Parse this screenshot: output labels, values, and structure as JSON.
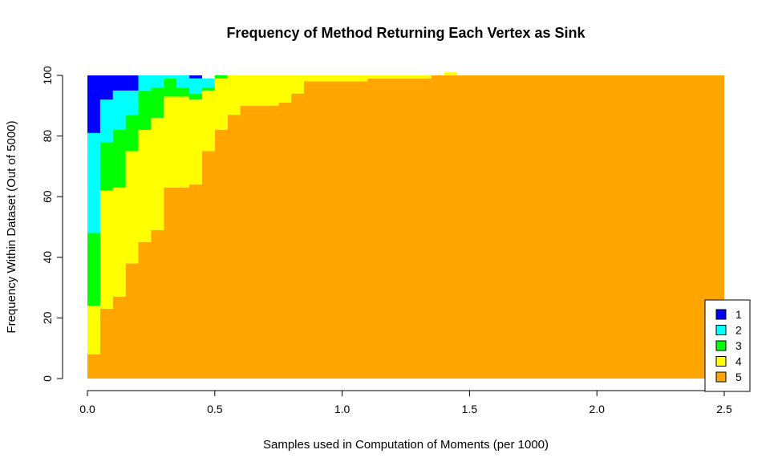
{
  "chart_data": {
    "type": "area",
    "title": "Frequency of Method Returning Each Vertex as Sink",
    "xlabel": "Samples used in Computation of Moments (per 1000)",
    "ylabel": "Frequency Within Dataset (Out of 5000)",
    "xlim": [
      0,
      2.5
    ],
    "ylim": [
      0,
      100
    ],
    "xticks": [
      "0.0",
      "0.5",
      "1.0",
      "1.5",
      "2.0",
      "2.5"
    ],
    "yticks": [
      "0",
      "20",
      "40",
      "60",
      "80",
      "100"
    ],
    "legend_position": "bottom-right",
    "x": [
      0.0,
      0.05,
      0.1,
      0.15,
      0.2,
      0.25,
      0.3,
      0.35,
      0.4,
      0.45,
      0.5,
      0.55,
      0.6,
      0.65,
      0.7,
      0.75,
      0.8,
      0.85,
      0.9,
      0.95,
      1.0,
      1.05,
      1.1,
      1.15,
      1.2,
      1.25,
      1.3,
      1.35,
      1.4,
      1.45,
      1.5,
      1.55,
      1.6,
      1.65,
      1.7,
      1.75,
      1.8,
      1.85,
      1.9,
      1.95,
      2.0,
      2.05,
      2.1,
      2.15,
      2.2,
      2.25,
      2.3,
      2.35,
      2.4,
      2.45
    ],
    "series": [
      {
        "name": "5",
        "color": "#FFA500",
        "values": [
          8,
          23,
          27,
          38,
          45,
          49,
          63,
          63,
          64,
          75,
          82,
          87,
          90,
          90,
          90,
          91,
          94,
          98,
          98,
          98,
          98,
          98,
          99,
          99,
          99,
          99,
          99,
          100,
          100,
          100,
          100,
          100,
          100,
          100,
          100,
          100,
          100,
          100,
          100,
          100,
          100,
          100,
          100,
          100,
          100,
          100,
          100,
          100,
          100,
          100
        ]
      },
      {
        "name": "4",
        "color": "#FFFF00",
        "values": [
          16,
          39,
          36,
          37,
          37,
          37,
          30,
          30,
          28,
          20,
          17,
          13,
          10,
          10,
          10,
          9,
          6,
          2,
          2,
          2,
          2,
          2,
          1,
          1,
          1,
          1,
          1,
          0,
          1,
          0,
          0,
          0,
          0,
          0,
          0,
          0,
          0,
          0,
          0,
          0,
          0,
          0,
          0,
          0,
          0,
          0,
          0,
          0,
          0,
          0
        ]
      },
      {
        "name": "3",
        "color": "#00FF00",
        "values": [
          24,
          16,
          19,
          12,
          13,
          10,
          6,
          3,
          2,
          1,
          1,
          0,
          0,
          0,
          0,
          0,
          0,
          0,
          0,
          0,
          0,
          0,
          0,
          0,
          0,
          0,
          0,
          0,
          0,
          0,
          0,
          0,
          0,
          0,
          0,
          0,
          0,
          0,
          0,
          0,
          0,
          0,
          0,
          0,
          0,
          0,
          0,
          0,
          0,
          0
        ]
      },
      {
        "name": "2",
        "color": "#00FFFF",
        "values": [
          33,
          14,
          13,
          8,
          5,
          4,
          1,
          4,
          5,
          3,
          0,
          0,
          0,
          0,
          0,
          0,
          0,
          0,
          0,
          0,
          0,
          0,
          0,
          0,
          0,
          0,
          0,
          0,
          0,
          0,
          0,
          0,
          0,
          0,
          0,
          0,
          0,
          0,
          0,
          0,
          0,
          0,
          0,
          0,
          0,
          0,
          0,
          0,
          0,
          0
        ]
      },
      {
        "name": "1",
        "color": "#0000FF",
        "values": [
          19,
          8,
          5,
          5,
          0,
          0,
          0,
          0,
          1,
          0,
          0,
          0,
          0,
          0,
          0,
          0,
          0,
          0,
          0,
          0,
          0,
          0,
          0,
          0,
          0,
          0,
          0,
          0,
          0,
          0,
          0,
          0,
          0,
          0,
          0,
          0,
          0,
          0,
          0,
          0,
          0,
          0,
          0,
          0,
          0,
          0,
          0,
          0,
          0,
          0
        ]
      }
    ],
    "legend_entries": [
      {
        "label": "1",
        "color": "#0000FF"
      },
      {
        "label": "2",
        "color": "#00FFFF"
      },
      {
        "label": "3",
        "color": "#00FF00"
      },
      {
        "label": "4",
        "color": "#FFFF00"
      },
      {
        "label": "5",
        "color": "#FFA500"
      }
    ]
  }
}
